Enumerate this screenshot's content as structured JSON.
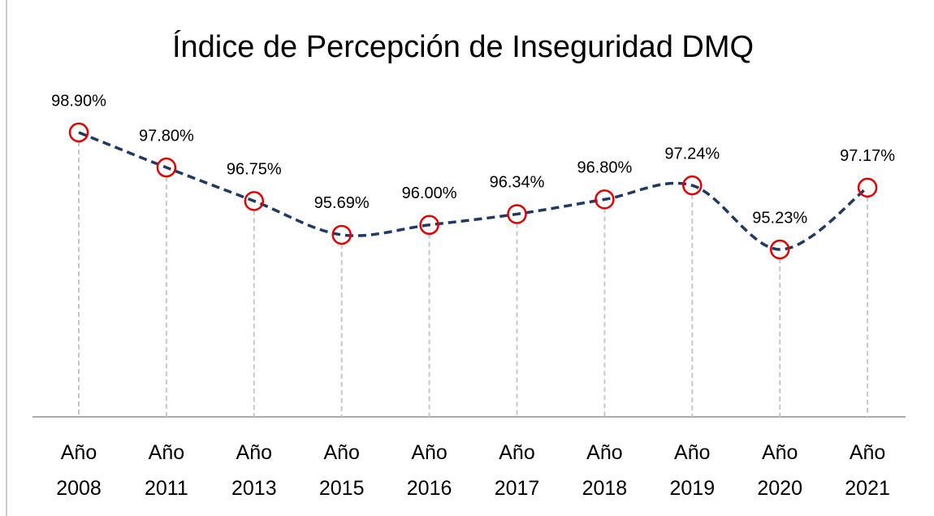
{
  "chart_data": {
    "type": "line",
    "title": "Índice de Percepción de Inseguridad DMQ",
    "categories": [
      "Año 2008",
      "Año 2011",
      "Año 2013",
      "Año 2015",
      "Año 2016",
      "Año 2017",
      "Año 2018",
      "Año 2019",
      "Año 2020",
      "Año 2021"
    ],
    "values": [
      98.9,
      97.8,
      96.75,
      95.69,
      96.0,
      96.34,
      96.8,
      97.24,
      95.23,
      97.17
    ],
    "value_labels": [
      "98.90%",
      "97.80%",
      "96.75%",
      "95.69%",
      "96.00%",
      "96.34%",
      "96.80%",
      "97.24%",
      "95.23%",
      "97.17%"
    ],
    "color": "#1f3864",
    "marker_color": "#e00000"
  }
}
